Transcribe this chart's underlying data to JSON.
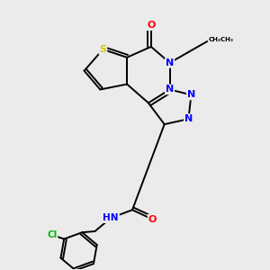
{
  "bg_color": "#ebebeb",
  "atom_colors": {
    "S": "#cccc00",
    "N": "#0000ff",
    "O": "#ff0000",
    "Cl": "#00bb00",
    "C": "#000000",
    "H": "#555555"
  },
  "bond_color": "#000000"
}
